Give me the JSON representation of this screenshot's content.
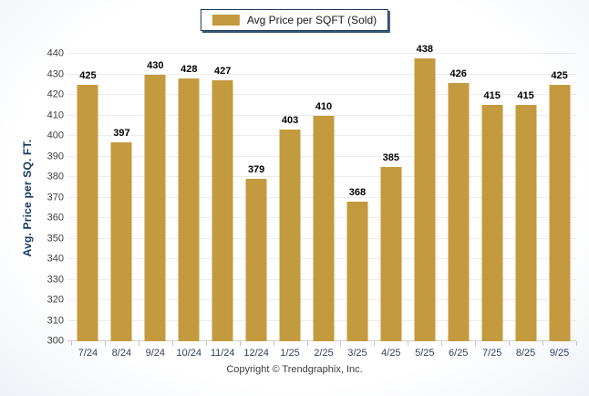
{
  "legend": {
    "label": "Avg Price per SQFT (Sold)"
  },
  "y_axis": {
    "title": "Avg. Price per SQ. FT.",
    "min": 300,
    "max": 440,
    "step": 10
  },
  "footer": {
    "copyright": "Copyright © Trendgraphix, Inc."
  },
  "colors": {
    "bar": "#C49A3E",
    "grid": "#ececec",
    "axis_title": "#17375E",
    "x_label": "#33415c",
    "y_label": "#404040",
    "legend_border": "#17375E"
  },
  "chart_data": {
    "type": "bar",
    "title": "Avg Price per SQFT (Sold)",
    "categories": [
      "7/24",
      "8/24",
      "9/24",
      "10/24",
      "11/24",
      "12/24",
      "1/25",
      "2/25",
      "3/25",
      "4/25",
      "5/25",
      "6/25",
      "7/25",
      "8/25",
      "9/25"
    ],
    "values": [
      425,
      397,
      430,
      428,
      427,
      379,
      403,
      410,
      368,
      385,
      438,
      426,
      415,
      415,
      425
    ],
    "xlabel": "",
    "ylabel": "Avg. Price per SQ. FT.",
    "ylim": [
      300,
      440
    ],
    "ytick_step": 10,
    "grid": true,
    "legend_position": "top-center",
    "bar_color": "#C49A3E",
    "value_labels": true
  }
}
